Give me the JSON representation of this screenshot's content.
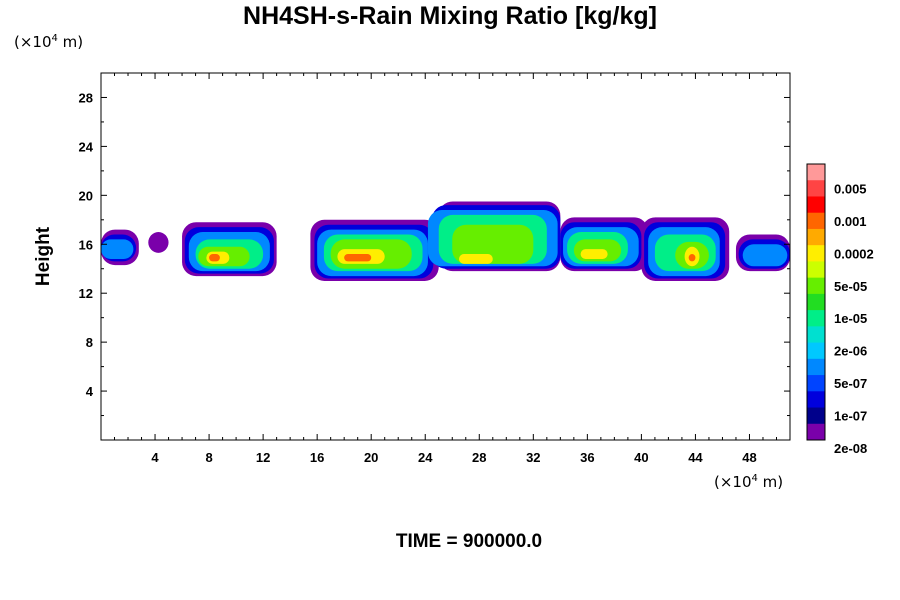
{
  "chart_data": {
    "type": "heatmap",
    "title": "NH4SH-s-Rain Mixing Ratio [kg/kg]",
    "ylabel": "Height",
    "xlabel": "",
    "x_unit": "(×10⁴ m)",
    "y_unit": "(×10⁴ m)",
    "xlim": [
      0,
      51
    ],
    "ylim": [
      0,
      30
    ],
    "x_ticks": [
      4,
      8,
      12,
      16,
      20,
      24,
      28,
      32,
      36,
      40,
      44,
      48
    ],
    "y_ticks": [
      4,
      8,
      12,
      16,
      20,
      24,
      28
    ],
    "colorbar": {
      "labels": [
        "0.005",
        "0.001",
        "0.0002",
        "5e-05",
        "1e-05",
        "2e-06",
        "5e-07",
        "1e-07",
        "2e-08"
      ],
      "colors_top_to_bottom": [
        "#ff9999",
        "#ff4444",
        "#ff0000",
        "#ff6600",
        "#ffaa00",
        "#ffee00",
        "#ccff00",
        "#66ee00",
        "#22dd22",
        "#00ee88",
        "#00e0d0",
        "#00c8ff",
        "#0088ff",
        "#0044ff",
        "#0000dd",
        "#00008b",
        "#7a00aa"
      ]
    },
    "field_layers": [
      {
        "level": 0,
        "color": "#7a00aa",
        "spans": [
          [
            0,
            2.8,
            14.3,
            17.2
          ],
          [
            3.5,
            5.0,
            15.3,
            17.0
          ],
          [
            6.0,
            13.0,
            13.4,
            17.8
          ],
          [
            15.5,
            25.0,
            13.0,
            18.0
          ],
          [
            25.0,
            34.0,
            13.8,
            19.5
          ],
          [
            34.0,
            40.5,
            13.8,
            18.2
          ],
          [
            40.0,
            46.5,
            13.0,
            18.2
          ],
          [
            47.0,
            51.0,
            13.8,
            16.8
          ]
        ]
      },
      {
        "level": 1,
        "color": "#0000dd",
        "spans": [
          [
            0,
            2.6,
            14.6,
            16.8
          ],
          [
            6.2,
            12.8,
            13.6,
            17.4
          ],
          [
            15.8,
            24.6,
            13.2,
            17.6
          ],
          [
            24.5,
            34.0,
            14.0,
            19.2
          ],
          [
            34.0,
            40.0,
            14.0,
            17.8
          ],
          [
            40.2,
            46.2,
            13.2,
            17.8
          ],
          [
            47.2,
            51.0,
            14.0,
            16.4
          ]
        ]
      },
      {
        "level": 2,
        "color": "#0088ff",
        "spans": [
          [
            0,
            2.4,
            14.8,
            16.4
          ],
          [
            6.5,
            12.5,
            13.8,
            17.0
          ],
          [
            16.0,
            24.2,
            13.4,
            17.2
          ],
          [
            24.2,
            33.8,
            14.2,
            18.8
          ],
          [
            34.2,
            39.8,
            14.2,
            17.4
          ],
          [
            40.5,
            45.8,
            13.4,
            17.4
          ],
          [
            47.5,
            50.8,
            14.2,
            16.0
          ]
        ]
      },
      {
        "level": 3,
        "color": "#00ee88",
        "spans": [
          [
            7.0,
            12.0,
            14.0,
            16.4
          ],
          [
            16.5,
            23.8,
            13.8,
            16.8
          ],
          [
            25.0,
            33.0,
            14.4,
            18.4
          ],
          [
            34.5,
            39.0,
            14.4,
            17.0
          ],
          [
            41.0,
            45.5,
            13.8,
            16.8
          ]
        ]
      },
      {
        "level": 4,
        "color": "#66ee00",
        "spans": [
          [
            7.2,
            11.0,
            14.2,
            15.8
          ],
          [
            17.0,
            23.0,
            14.0,
            16.4
          ],
          [
            26.0,
            32.0,
            14.4,
            17.6
          ],
          [
            35.0,
            38.5,
            14.6,
            16.4
          ],
          [
            42.5,
            45.0,
            14.0,
            16.2
          ]
        ]
      },
      {
        "level": 5,
        "color": "#ffee00",
        "spans": [
          [
            7.8,
            9.5,
            14.4,
            15.4
          ],
          [
            17.5,
            21.0,
            14.4,
            15.6
          ],
          [
            26.5,
            29.0,
            14.4,
            15.2
          ],
          [
            35.5,
            37.5,
            14.8,
            15.6
          ],
          [
            43.2,
            44.3,
            14.2,
            15.8
          ]
        ]
      },
      {
        "level": 6,
        "color": "#ff6600",
        "spans": [
          [
            8.0,
            8.8,
            14.6,
            15.2
          ],
          [
            18.0,
            20.0,
            14.6,
            15.2
          ],
          [
            43.5,
            44.0,
            14.6,
            15.2
          ]
        ]
      }
    ]
  },
  "time_label": "TIME = 900000.0"
}
